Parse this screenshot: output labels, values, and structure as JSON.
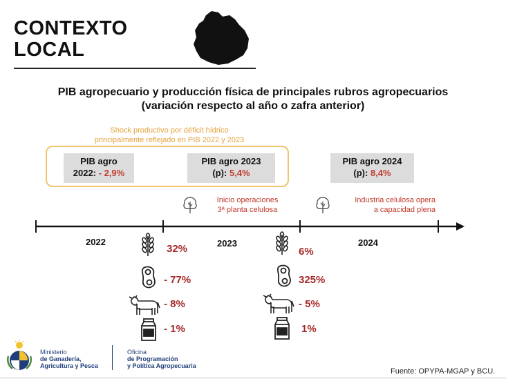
{
  "header": {
    "title_line1": "CONTEXTO",
    "title_line2": "LOCAL"
  },
  "heading": {
    "line1": "PIB agropecuario y producción física de principales rubros agropecuarios",
    "line2": "(variación respecto al año o zafra anterior)"
  },
  "shock": {
    "line1": "Shock productivo  por déficit hídrico",
    "line2": "principalmente reflejado en PIB 2022 y 2023"
  },
  "pib": [
    {
      "label": "PIB agro",
      "label2": "2022:",
      "value": "- 2,9%"
    },
    {
      "label": "PIB agro 2023",
      "label2": "(p):",
      "value": "5,4%"
    },
    {
      "label": "PIB agro 2024",
      "label2": "(p):",
      "value": "8,4%"
    }
  ],
  "notes": [
    {
      "line1": "Inicio operaciones",
      "line2": "3ª planta celulosa"
    },
    {
      "line1": "Industria celulosa opera",
      "line2": "a capacidad plena"
    }
  ],
  "timeline": {
    "years": [
      "2022",
      "2023",
      "2024"
    ]
  },
  "items": [
    {
      "icon": "wheat-icon",
      "col1": "32%",
      "col2": "6%"
    },
    {
      "icon": "soybean-icon",
      "col1": "- 77%",
      "col2": "325%"
    },
    {
      "icon": "cow-icon",
      "col1": "- 8%",
      "col2": "- 5%"
    },
    {
      "icon": "milk-carton-icon",
      "col1": "- 1%",
      "col2": "1%"
    }
  ],
  "footer": {
    "ministry_line1": "Ministerio",
    "ministry_line2": "de Ganadería,",
    "ministry_line3": "Agricultura y Pesca",
    "office_line1": "Oficina",
    "office_line2": "de Programación",
    "office_line3": "y Política Agropecuaria",
    "source": "Fuente: OPYPA-MGAP y BCU."
  },
  "colors": {
    "accent_red": "#c0392b",
    "value_red": "#a52a2a",
    "shock_orange": "#e6a23c",
    "box_grey": "#dcdcdc",
    "ministry_blue": "#1f3d7a"
  }
}
